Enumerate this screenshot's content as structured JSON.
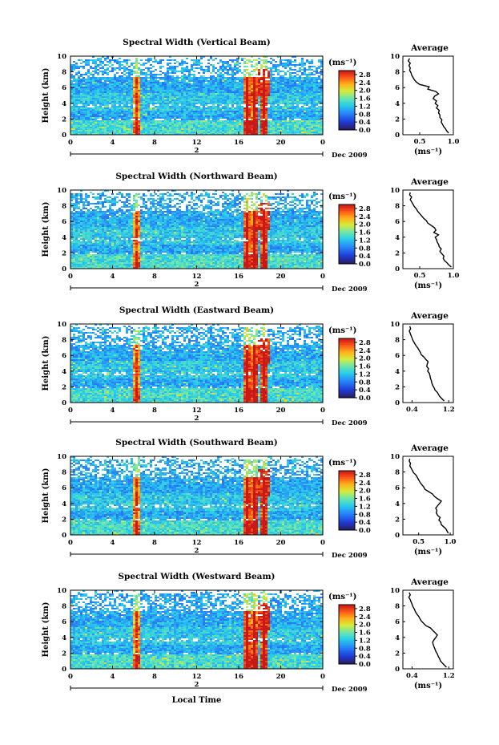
{
  "chart_data": [
    {
      "type": "heatmap",
      "title": "Spectral Width (Vertical Beam)",
      "ylabel": "Height (km)",
      "xlabel": "",
      "x_ticks": [
        "0",
        "4",
        "8",
        "12",
        "16",
        "20",
        "0"
      ],
      "y_ticks": [
        "0",
        "2",
        "4",
        "6",
        "8",
        "10"
      ],
      "ylim": [
        0,
        10
      ],
      "date_day": "2",
      "date_label": "Dec 2009",
      "colorbar": {
        "unit": "(ms⁻¹)",
        "ticks": [
          "0.0",
          "0.4",
          "0.8",
          "1.2",
          "1.6",
          "2.0",
          "2.4",
          "2.8"
        ],
        "range": [
          0,
          3
        ]
      },
      "average": {
        "title": "Average",
        "xlabel": "(ms⁻¹)",
        "x_ticks": [
          "0.5",
          "1.0"
        ],
        "xlim": [
          0.25,
          1.0
        ],
        "height": [
          0.2,
          0.5,
          0.8,
          1.0,
          1.3,
          1.6,
          1.9,
          2.2,
          2.5,
          2.8,
          3.1,
          3.4,
          3.7,
          4.0,
          4.3,
          4.6,
          4.9,
          5.2,
          5.5,
          5.8,
          6.1,
          6.4,
          6.7,
          7.0,
          7.3,
          7.6,
          7.9,
          8.2,
          8.5,
          8.8,
          9.1,
          9.4,
          9.7
        ],
        "value": [
          0.93,
          0.9,
          0.88,
          0.86,
          0.84,
          0.82,
          0.83,
          0.8,
          0.8,
          0.78,
          0.79,
          0.75,
          0.77,
          0.73,
          0.75,
          0.7,
          0.72,
          0.78,
          0.74,
          0.62,
          0.64,
          0.5,
          0.45,
          0.42,
          0.4,
          0.38,
          0.37,
          0.35,
          0.36,
          0.34,
          0.36,
          0.33,
          0.35
        ]
      }
    },
    {
      "type": "heatmap",
      "title": "Spectral Width (Northward Beam)",
      "ylabel": "Height (km)",
      "xlabel": "",
      "x_ticks": [
        "0",
        "4",
        "8",
        "12",
        "16",
        "20",
        "0"
      ],
      "y_ticks": [
        "0",
        "2",
        "4",
        "6",
        "8",
        "10"
      ],
      "ylim": [
        0,
        10
      ],
      "date_day": "2",
      "date_label": "Dec 2009",
      "colorbar": {
        "unit": "(ms⁻¹)",
        "ticks": [
          "0.0",
          "0.4",
          "0.8",
          "1.2",
          "1.6",
          "2.0",
          "2.4",
          "2.8"
        ],
        "range": [
          0,
          3
        ]
      },
      "average": {
        "title": "Average",
        "xlabel": "(ms⁻¹)",
        "x_ticks": [
          "0.5",
          "1.0"
        ],
        "xlim": [
          0.25,
          1.0
        ],
        "height": [
          0.2,
          0.5,
          0.8,
          1.0,
          1.3,
          1.6,
          1.9,
          2.2,
          2.5,
          2.8,
          3.1,
          3.4,
          3.7,
          4.0,
          4.3,
          4.6,
          4.9,
          5.2,
          5.5,
          5.8,
          6.1,
          6.4,
          6.7,
          7.0,
          7.3,
          7.6,
          7.9,
          8.2,
          8.5,
          8.8,
          9.1,
          9.4,
          9.7
        ],
        "value": [
          0.97,
          0.93,
          0.9,
          0.87,
          0.85,
          0.86,
          0.83,
          0.8,
          0.82,
          0.79,
          0.78,
          0.76,
          0.75,
          0.73,
          0.78,
          0.71,
          0.74,
          0.72,
          0.67,
          0.62,
          0.6,
          0.56,
          0.53,
          0.5,
          0.47,
          0.45,
          0.42,
          0.4,
          0.38,
          0.36,
          0.38,
          0.35,
          0.36
        ]
      }
    },
    {
      "type": "heatmap",
      "title": "Spectral Width (Eastward Beam)",
      "ylabel": "Height (km)",
      "xlabel": "",
      "x_ticks": [
        "0",
        "4",
        "8",
        "12",
        "16",
        "20",
        "0"
      ],
      "y_ticks": [
        "0",
        "2",
        "4",
        "6",
        "8",
        "10"
      ],
      "ylim": [
        0,
        10
      ],
      "date_day": "2",
      "date_label": "Dec 2009",
      "colorbar": {
        "unit": "(ms⁻¹)",
        "ticks": [
          "0.0",
          "0.4",
          "0.8",
          "1.2",
          "1.6",
          "2.0",
          "2.4",
          "2.8"
        ],
        "range": [
          0,
          3
        ]
      },
      "average": {
        "title": "Average",
        "xlabel": "",
        "x_ticks": [
          "0.4",
          "1.2"
        ],
        "xlim": [
          0.2,
          1.3
        ],
        "height": [
          0.2,
          0.5,
          0.8,
          1.0,
          1.3,
          1.6,
          1.9,
          2.2,
          2.5,
          2.8,
          3.1,
          3.4,
          3.7,
          4.0,
          4.3,
          4.6,
          4.9,
          5.2,
          5.5,
          5.8,
          6.1,
          6.4,
          6.7,
          7.0,
          7.3,
          7.6,
          7.9,
          8.2,
          8.5,
          8.8,
          9.1,
          9.4,
          9.7
        ],
        "value": [
          1.1,
          1.05,
          1.0,
          0.98,
          0.95,
          0.9,
          0.88,
          0.85,
          0.83,
          0.82,
          0.8,
          0.79,
          0.78,
          0.74,
          0.76,
          0.72,
          0.73,
          0.75,
          0.7,
          0.66,
          0.6,
          0.58,
          0.55,
          0.52,
          0.48,
          0.45,
          0.42,
          0.4,
          0.38,
          0.36,
          0.34,
          0.37,
          0.35
        ]
      }
    },
    {
      "type": "heatmap",
      "title": "Spectral Width (Southward Beam)",
      "ylabel": "Height (km)",
      "xlabel": "",
      "x_ticks": [
        "0",
        "4",
        "8",
        "12",
        "16",
        "20",
        "0"
      ],
      "y_ticks": [
        "0",
        "2",
        "4",
        "6",
        "8",
        "10"
      ],
      "ylim": [
        0,
        10
      ],
      "date_day": "2",
      "date_label": "Dec 2009",
      "colorbar": {
        "unit": "(ms⁻¹)",
        "ticks": [
          "0.0",
          "0.4",
          "0.8",
          "1.2",
          "1.6",
          "2.0",
          "2.4",
          "2.8"
        ],
        "range": [
          0,
          3
        ]
      },
      "average": {
        "title": "Average",
        "xlabel": "(ms⁻¹)",
        "x_ticks": [
          "0.5",
          "1.0"
        ],
        "xlim": [
          0.25,
          1.05
        ],
        "height": [
          0.2,
          0.5,
          0.8,
          1.0,
          1.3,
          1.6,
          1.9,
          2.2,
          2.5,
          2.8,
          3.1,
          3.4,
          3.7,
          4.0,
          4.3,
          4.6,
          4.9,
          5.2,
          5.5,
          5.8,
          6.1,
          6.4,
          6.7,
          7.0,
          7.3,
          7.6,
          7.9,
          8.2,
          8.5,
          8.8,
          9.1,
          9.4,
          9.7
        ],
        "value": [
          0.97,
          0.95,
          0.93,
          0.9,
          0.86,
          0.85,
          0.82,
          0.84,
          0.8,
          0.78,
          0.79,
          0.77,
          0.8,
          0.83,
          0.86,
          0.8,
          0.75,
          0.72,
          0.66,
          0.6,
          0.58,
          0.55,
          0.52,
          0.5,
          0.48,
          0.46,
          0.42,
          0.4,
          0.38,
          0.36,
          0.37,
          0.35,
          0.36
        ]
      }
    },
    {
      "type": "heatmap",
      "title": "Spectral Width (Westward Beam)",
      "ylabel": "Height (km)",
      "xlabel": "Local Time",
      "x_ticks": [
        "0",
        "4",
        "8",
        "12",
        "16",
        "20",
        "0"
      ],
      "y_ticks": [
        "0",
        "2",
        "4",
        "6",
        "8",
        "10"
      ],
      "ylim": [
        0,
        10
      ],
      "date_day": "2",
      "date_label": "Dec 2009",
      "colorbar": {
        "unit": "(ms⁻¹)",
        "ticks": [
          "0.0",
          "0.4",
          "0.8",
          "1.2",
          "1.6",
          "2.0",
          "2.4",
          "2.8"
        ],
        "range": [
          0,
          3
        ]
      },
      "average": {
        "title": "Average",
        "xlabel": "(ms⁻¹)",
        "x_ticks": [
          "0.4",
          "1.2"
        ],
        "xlim": [
          0.2,
          1.3
        ],
        "height": [
          0.2,
          0.5,
          0.8,
          1.0,
          1.3,
          1.6,
          1.9,
          2.2,
          2.5,
          2.8,
          3.1,
          3.4,
          3.7,
          4.0,
          4.3,
          4.6,
          4.9,
          5.2,
          5.5,
          5.8,
          6.1,
          6.4,
          6.7,
          7.0,
          7.3,
          7.6,
          7.9,
          8.2,
          8.5,
          8.8,
          9.1,
          9.4,
          9.7
        ],
        "value": [
          1.15,
          1.1,
          1.05,
          1.02,
          1.0,
          0.97,
          0.95,
          0.92,
          0.9,
          0.88,
          0.86,
          0.85,
          0.88,
          0.92,
          0.95,
          0.9,
          0.85,
          0.8,
          0.7,
          0.65,
          0.6,
          0.57,
          0.54,
          0.5,
          0.47,
          0.45,
          0.42,
          0.4,
          0.38,
          0.36,
          0.33,
          0.36,
          0.34
        ]
      }
    }
  ]
}
